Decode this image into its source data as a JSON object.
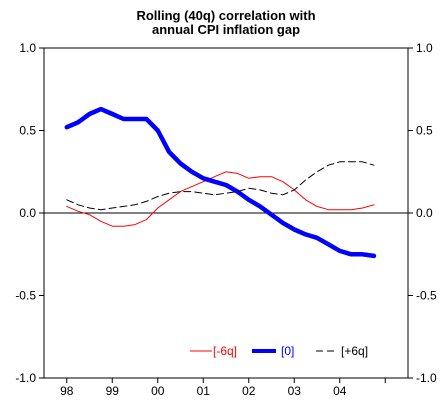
{
  "chart_data": {
    "type": "line",
    "title_lines": [
      "Rolling (40q) correlation with",
      "annual CPI inflation gap"
    ],
    "xlabel": "",
    "ylabel": "",
    "categories": [
      "98",
      "99",
      "00",
      "01",
      "02",
      "03",
      "04"
    ],
    "x_range": [
      1997.5,
      2005.5
    ],
    "ylim": [
      -1.0,
      1.0
    ],
    "y_ticks": [
      1.0,
      0.5,
      0.0,
      -0.5,
      -1.0
    ],
    "y_tick_labels": [
      "1.0",
      "0.5",
      "0.0",
      "-0.5",
      "-1.0"
    ],
    "zero_line": true,
    "grid": false,
    "legend_position": "bottom-right",
    "series": [
      {
        "name": "[-6q]",
        "color": "#ff0000",
        "style": "solid-thin",
        "x": [
          1998.0,
          1998.25,
          1998.5,
          1998.75,
          1999.0,
          1999.25,
          1999.5,
          1999.75,
          2000.0,
          2000.25,
          2000.5,
          2000.75,
          2001.0,
          2001.25,
          2001.5,
          2001.75,
          2002.0,
          2002.25,
          2002.5,
          2002.75,
          2003.0,
          2003.25,
          2003.5,
          2003.75,
          2004.0,
          2004.25,
          2004.5,
          2004.75
        ],
        "values": [
          0.04,
          0.01,
          -0.01,
          -0.05,
          -0.08,
          -0.08,
          -0.07,
          -0.04,
          0.03,
          0.08,
          0.13,
          0.16,
          0.19,
          0.22,
          0.25,
          0.24,
          0.21,
          0.22,
          0.22,
          0.19,
          0.14,
          0.08,
          0.04,
          0.02,
          0.02,
          0.02,
          0.03,
          0.05
        ]
      },
      {
        "name": "[0]",
        "color": "#0000ff",
        "style": "solid-thick",
        "x": [
          1998.0,
          1998.25,
          1998.5,
          1998.75,
          1999.0,
          1999.25,
          1999.5,
          1999.75,
          2000.0,
          2000.25,
          2000.5,
          2000.75,
          2001.0,
          2001.25,
          2001.5,
          2001.75,
          2002.0,
          2002.25,
          2002.5,
          2002.75,
          2003.0,
          2003.25,
          2003.5,
          2003.75,
          2004.0,
          2004.25,
          2004.5,
          2004.75
        ],
        "values": [
          0.52,
          0.55,
          0.6,
          0.63,
          0.6,
          0.57,
          0.57,
          0.57,
          0.5,
          0.37,
          0.3,
          0.25,
          0.21,
          0.19,
          0.17,
          0.13,
          0.08,
          0.04,
          -0.01,
          -0.06,
          -0.1,
          -0.13,
          -0.15,
          -0.19,
          -0.23,
          -0.25,
          -0.25,
          -0.26
        ]
      },
      {
        "name": "[+6q]",
        "color": "#000000",
        "style": "dashed",
        "x": [
          1998.0,
          1998.25,
          1998.5,
          1998.75,
          1999.0,
          1999.25,
          1999.5,
          1999.75,
          2000.0,
          2000.25,
          2000.5,
          2000.75,
          2001.0,
          2001.25,
          2001.5,
          2001.75,
          2002.0,
          2002.25,
          2002.5,
          2002.75,
          2003.0,
          2003.25,
          2003.5,
          2003.75,
          2004.0,
          2004.25,
          2004.5,
          2004.75
        ],
        "values": [
          0.08,
          0.05,
          0.03,
          0.02,
          0.03,
          0.04,
          0.05,
          0.07,
          0.1,
          0.12,
          0.13,
          0.13,
          0.12,
          0.11,
          0.12,
          0.13,
          0.15,
          0.14,
          0.12,
          0.11,
          0.14,
          0.2,
          0.25,
          0.29,
          0.31,
          0.31,
          0.31,
          0.29
        ]
      }
    ]
  }
}
